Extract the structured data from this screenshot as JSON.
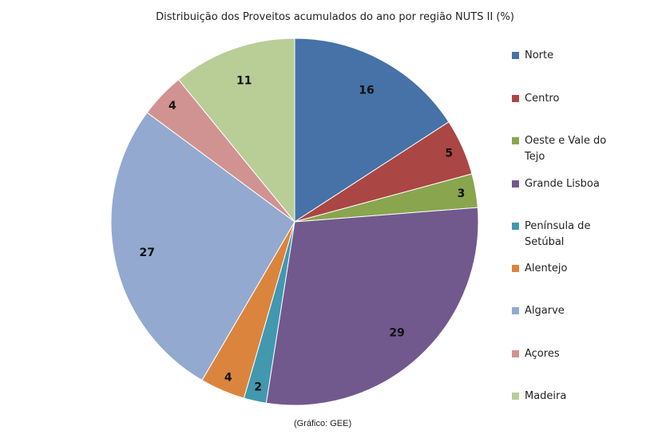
{
  "chart_data": {
    "type": "pie",
    "title": "Distribuição dos Proveitos acumulados do ano por região NUTS II (%)",
    "slices": [
      {
        "label": "Norte",
        "value": 16,
        "color": "#4672A8"
      },
      {
        "label": "Centro",
        "value": 5,
        "color": "#AA4644"
      },
      {
        "label": "Oeste e Vale do Tejo",
        "value": 3,
        "color": "#89A54E"
      },
      {
        "label": "Grande Lisboa",
        "value": 29,
        "color": "#71598D"
      },
      {
        "label": "Península de Setúbal",
        "value": 2,
        "color": "#4198AF"
      },
      {
        "label": "Alentejo",
        "value": 4,
        "color": "#DB843D"
      },
      {
        "label": "Algarve",
        "value": 27,
        "color": "#93A9CF"
      },
      {
        "label": "Açores",
        "value": 4,
        "color": "#D19392"
      },
      {
        "label": "Madeira",
        "value": 11,
        "color": "#B9CD96"
      }
    ],
    "legend_position": "right"
  },
  "footnote": "(Gráfico: GEE)"
}
